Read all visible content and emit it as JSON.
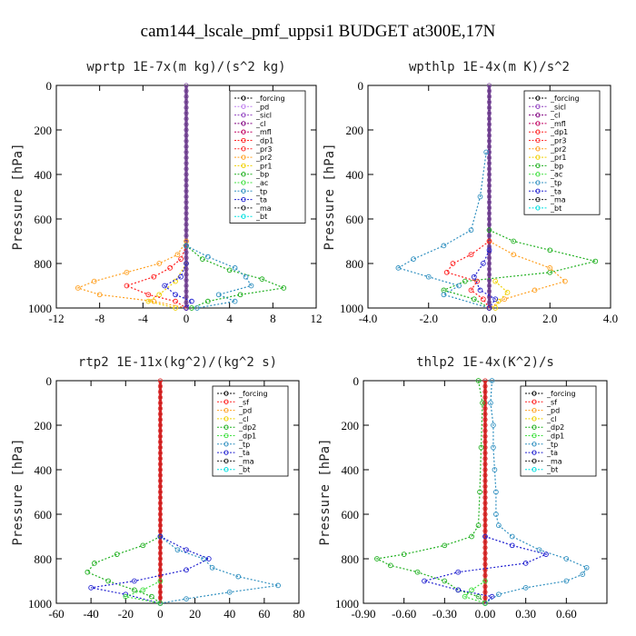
{
  "figure_title": "cam144_lscale_pmf_uppsi1  BUDGET at300E,17N",
  "colors": {
    "forcing": "#000000",
    "pd": "#c080f0",
    "sicl": "#9040c0",
    "cl": "#800080",
    "mfl": "#c00060",
    "dp1": "#ff2020",
    "pr3": "#ff3030",
    "pr2": "#ffa020",
    "pr1": "#f0d000",
    "bp": "#20b020",
    "ac": "#40e040",
    "tp": "#3090c0",
    "ta": "#2020d0",
    "ma": "#202020",
    "bt": "#00e0e0"
  },
  "chart_data": [
    {
      "type": "line",
      "title": "wprtp  1E-7x(m kg)/(s^2 kg)",
      "xlabel": "",
      "ylabel": "Pressure [hPa]",
      "xlim": [
        -12,
        12
      ],
      "ylim": [
        1000,
        0
      ],
      "xticks": [
        "-12",
        "-8",
        "-4",
        "0",
        "4",
        "8",
        "12"
      ],
      "yticks": [
        "0",
        "200",
        "400",
        "600",
        "800",
        "1000"
      ],
      "xtick_values": [
        -12,
        -8,
        -4,
        0,
        4,
        8,
        12
      ],
      "ytick_values": [
        0,
        200,
        400,
        600,
        800,
        1000
      ],
      "legend": [
        "_forcing",
        "_pd",
        "_sicl",
        "_cl",
        "_mfl",
        "_dp1",
        "_pr3",
        "_pr2",
        "_pr1",
        "_bp",
        "_ac",
        "_tp",
        "_ta",
        "_ma",
        "_bt"
      ],
      "legend_keys": [
        "forcing",
        "pd",
        "sicl",
        "cl",
        "mfl",
        "dp1",
        "pr3",
        "pr2",
        "pr1",
        "bp",
        "ac",
        "tp",
        "ta",
        "ma",
        "bt"
      ],
      "series": [
        {
          "name": "_pr2",
          "color_key": "pr2",
          "p": [
            700,
            760,
            800,
            840,
            880,
            910,
            940,
            970,
            1000
          ],
          "x": [
            0,
            -0.8,
            -2.5,
            -5.5,
            -8.5,
            -10.0,
            -8.0,
            -3.0,
            0
          ]
        },
        {
          "name": "_pr1",
          "color_key": "pr1",
          "p": [
            800,
            880,
            940,
            970,
            1000
          ],
          "x": [
            0,
            -1.0,
            -2.5,
            -3.5,
            -1.0
          ]
        },
        {
          "name": "_dp1",
          "color_key": "dp1",
          "p": [
            720,
            780,
            820,
            860,
            900,
            940,
            970,
            1000
          ],
          "x": [
            0,
            -0.5,
            -1.5,
            -3.0,
            -5.5,
            -3.5,
            -1.0,
            0
          ]
        },
        {
          "name": "_bp",
          "color_key": "bp",
          "p": [
            720,
            780,
            830,
            870,
            910,
            940,
            970,
            1000
          ],
          "x": [
            0,
            1.5,
            4.0,
            7.0,
            9.0,
            5.0,
            2.0,
            0.5
          ]
        },
        {
          "name": "_tp",
          "color_key": "tp",
          "p": [
            720,
            770,
            820,
            860,
            900,
            940,
            970,
            1000
          ],
          "x": [
            0,
            2.0,
            4.5,
            5.5,
            6.0,
            3.0,
            4.5,
            1.0
          ]
        },
        {
          "name": "_ta",
          "color_key": "ta",
          "p": [
            800,
            860,
            900,
            940,
            970,
            1000
          ],
          "x": [
            0,
            -0.5,
            -2.0,
            -1.0,
            0.5,
            0
          ]
        }
      ]
    },
    {
      "type": "line",
      "title": "wpthlp  1E-4x(m K)/s^2",
      "xlabel": "",
      "ylabel": "Pressure [hPa]",
      "xlim": [
        -4,
        4
      ],
      "ylim": [
        1000,
        0
      ],
      "xticks": [
        "-4.0",
        "-2.0",
        "0.0",
        "2.0",
        "4.0"
      ],
      "yticks": [
        "0",
        "200",
        "400",
        "600",
        "800",
        "1000"
      ],
      "xtick_values": [
        -4,
        -2,
        0,
        2,
        4
      ],
      "ytick_values": [
        0,
        200,
        400,
        600,
        800,
        1000
      ],
      "legend": [
        "_forcing",
        "_sicl",
        "_cl",
        "_mfl",
        "_dp1",
        "_pr3",
        "_pr2",
        "_pr1",
        "_bp",
        "_ac",
        "_tp",
        "_ta",
        "_ma",
        "_bt"
      ],
      "legend_keys": [
        "forcing",
        "sicl",
        "cl",
        "mfl",
        "dp1",
        "pr3",
        "pr2",
        "pr1",
        "bp",
        "ac",
        "tp",
        "ta",
        "ma",
        "bt"
      ],
      "series": [
        {
          "name": "_bp",
          "color_key": "bp",
          "p": [
            650,
            700,
            740,
            790,
            840,
            880,
            920,
            960,
            1000
          ],
          "x": [
            0,
            0.8,
            2.0,
            3.5,
            2.0,
            -0.8,
            -1.5,
            -0.5,
            0
          ]
        },
        {
          "name": "_tp",
          "color_key": "tp",
          "p": [
            300,
            500,
            650,
            720,
            780,
            820,
            860,
            900,
            940,
            1000
          ],
          "x": [
            -0.1,
            -0.3,
            -0.6,
            -1.5,
            -2.5,
            -3.0,
            -2.0,
            -1.0,
            -1.5,
            0
          ]
        },
        {
          "name": "_pr2",
          "color_key": "pr2",
          "p": [
            700,
            760,
            820,
            880,
            920,
            960,
            1000
          ],
          "x": [
            0,
            0.8,
            2.0,
            2.5,
            1.5,
            0.5,
            0
          ]
        },
        {
          "name": "_dp1",
          "color_key": "dp1",
          "p": [
            700,
            760,
            800,
            840,
            880,
            920,
            960,
            1000
          ],
          "x": [
            0,
            -0.6,
            -1.2,
            -1.4,
            -0.4,
            -0.6,
            -0.2,
            0
          ]
        },
        {
          "name": "_pr1",
          "color_key": "pr1",
          "p": [
            880,
            930,
            970,
            1000
          ],
          "x": [
            0.2,
            0.6,
            0.3,
            0.2
          ]
        },
        {
          "name": "_ta",
          "color_key": "ta",
          "p": [
            740,
            800,
            860,
            920,
            960,
            1000
          ],
          "x": [
            0,
            -0.2,
            -0.5,
            -0.3,
            0.2,
            0
          ]
        }
      ]
    },
    {
      "type": "line",
      "title": "rtp2  1E-11x(kg^2)/(kg^2 s)",
      "xlabel": "",
      "ylabel": "Pressure [hPa]",
      "xlim": [
        -60,
        80
      ],
      "ylim": [
        1000,
        0
      ],
      "xticks": [
        "-60",
        "-40",
        "-20",
        "0",
        "20",
        "40",
        "60",
        "80"
      ],
      "yticks": [
        "0",
        "200",
        "400",
        "600",
        "800",
        "1000"
      ],
      "xtick_values": [
        -60,
        -40,
        -20,
        0,
        20,
        40,
        60,
        80
      ],
      "ytick_values": [
        0,
        200,
        400,
        600,
        800,
        1000
      ],
      "legend": [
        "_forcing",
        "_sf",
        "_pd",
        "_cl",
        "_dp2",
        "_dp1",
        "_tp",
        "_ta",
        "_ma",
        "_bt"
      ],
      "legend_keys": [
        "forcing",
        "dp1",
        "pr2",
        "pr1",
        "bp",
        "ac",
        "tp",
        "ta",
        "ma",
        "bt"
      ],
      "series": [
        {
          "name": "_dp2",
          "color_key": "bp",
          "p": [
            700,
            740,
            780,
            820,
            860,
            900,
            940,
            970,
            1000
          ],
          "x": [
            0,
            -10,
            -25,
            -38,
            -42,
            -30,
            -15,
            -5,
            0
          ]
        },
        {
          "name": "_tp",
          "color_key": "tp",
          "p": [
            700,
            760,
            800,
            840,
            880,
            920,
            950,
            980,
            1000
          ],
          "x": [
            0,
            10,
            25,
            30,
            45,
            68,
            40,
            15,
            0
          ]
        },
        {
          "name": "_ta",
          "color_key": "ta",
          "p": [
            700,
            760,
            800,
            850,
            900,
            930,
            960,
            1000
          ],
          "x": [
            0,
            15,
            28,
            15,
            -15,
            -40,
            -20,
            0
          ]
        },
        {
          "name": "_dp1",
          "color_key": "ac",
          "p": [
            900,
            940,
            970,
            1000
          ],
          "x": [
            0,
            -10,
            -20,
            0
          ]
        }
      ]
    },
    {
      "type": "line",
      "title": "thlp2  1E-4x(K^2)/s",
      "xlabel": "",
      "ylabel": "Pressure [hPa]",
      "xlim": [
        -0.9,
        0.9
      ],
      "ylim": [
        1000,
        0
      ],
      "xticks": [
        "-0.90",
        "-0.60",
        "-0.30",
        "0.00",
        "0.30",
        "0.60"
      ],
      "yticks": [
        "0",
        "200",
        "400",
        "600",
        "800",
        "1000"
      ],
      "xtick_values": [
        -0.9,
        -0.6,
        -0.3,
        0,
        0.3,
        0.6
      ],
      "ytick_values": [
        0,
        200,
        400,
        600,
        800,
        1000
      ],
      "legend": [
        "_forcing",
        "_sf",
        "_pd",
        "_cl",
        "_dp2",
        "_dp1",
        "_tp",
        "_ta",
        "_ma",
        "_bt"
      ],
      "legend_keys": [
        "forcing",
        "dp1",
        "pr2",
        "pr1",
        "bp",
        "ac",
        "tp",
        "ta",
        "ma",
        "bt"
      ],
      "series": [
        {
          "name": "_tp",
          "color_key": "tp",
          "p": [
            0,
            100,
            200,
            300,
            400,
            500,
            600,
            650,
            700,
            760,
            800,
            840,
            870,
            900,
            930,
            960,
            1000
          ],
          "x": [
            0.05,
            0.04,
            0.06,
            0.06,
            0.07,
            0.08,
            0.08,
            0.1,
            0.2,
            0.4,
            0.6,
            0.75,
            0.72,
            0.6,
            0.3,
            0.1,
            0
          ]
        },
        {
          "name": "_dp2",
          "color_key": "bp",
          "p": [
            0,
            100,
            300,
            500,
            650,
            700,
            740,
            780,
            800,
            830,
            860,
            900,
            940,
            970,
            1000
          ],
          "x": [
            -0.05,
            -0.02,
            -0.03,
            -0.04,
            -0.05,
            -0.1,
            -0.3,
            -0.6,
            -0.8,
            -0.7,
            -0.5,
            -0.3,
            -0.2,
            -0.05,
            0
          ]
        },
        {
          "name": "_ta",
          "color_key": "ta",
          "p": [
            700,
            740,
            780,
            820,
            860,
            900,
            940,
            970,
            1000
          ],
          "x": [
            0,
            0.2,
            0.45,
            0.3,
            -0.2,
            -0.45,
            -0.2,
            0.05,
            0
          ]
        },
        {
          "name": "_dp1",
          "color_key": "ac",
          "p": [
            900,
            940,
            970,
            1000
          ],
          "x": [
            0,
            -0.1,
            -0.15,
            0
          ]
        }
      ]
    }
  ]
}
